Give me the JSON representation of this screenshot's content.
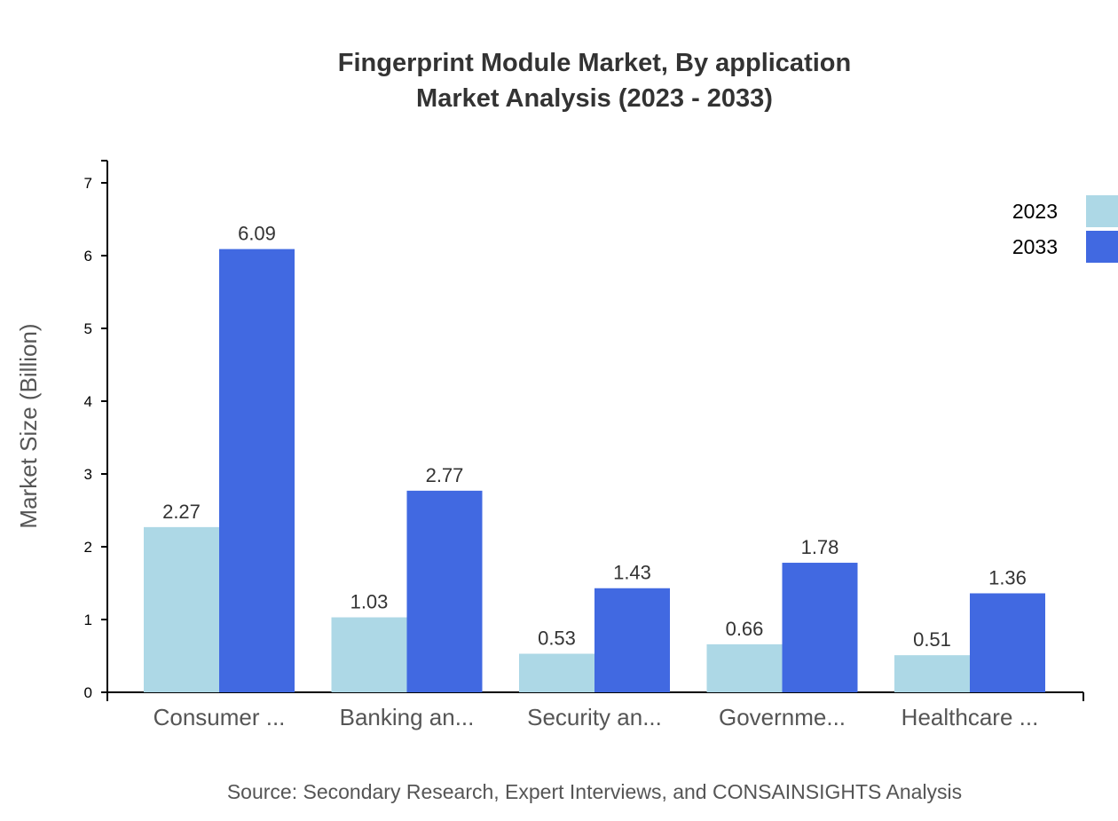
{
  "chart_data": {
    "type": "bar",
    "title": "Fingerprint Module Market, By application",
    "subtitle": "Market Analysis (2023 - 2033)",
    "ylabel": "Market Size (Billion)",
    "xlabel": "",
    "ylim": [
      0,
      7
    ],
    "yticks": [
      "0",
      "1",
      "2",
      "3",
      "4",
      "5",
      "6",
      "7"
    ],
    "categories": [
      "Consumer ...",
      "Banking an...",
      "Security an...",
      "Governme...",
      "Healthcare ..."
    ],
    "series": [
      {
        "name": "2023",
        "color": "#add8e6",
        "values": [
          2.27,
          1.03,
          0.53,
          0.66,
          0.51
        ],
        "labels": [
          "2.27",
          "1.03",
          "0.53",
          "0.66",
          "0.51"
        ]
      },
      {
        "name": "2033",
        "color": "#4169e1",
        "values": [
          6.09,
          2.77,
          1.43,
          1.78,
          1.36
        ],
        "labels": [
          "6.09",
          "2.77",
          "1.43",
          "1.78",
          "1.36"
        ]
      }
    ],
    "legend_position": "top-right",
    "grid": false,
    "source": "Source: Secondary Research, Expert Interviews, and CONSAINSIGHTS Analysis"
  }
}
